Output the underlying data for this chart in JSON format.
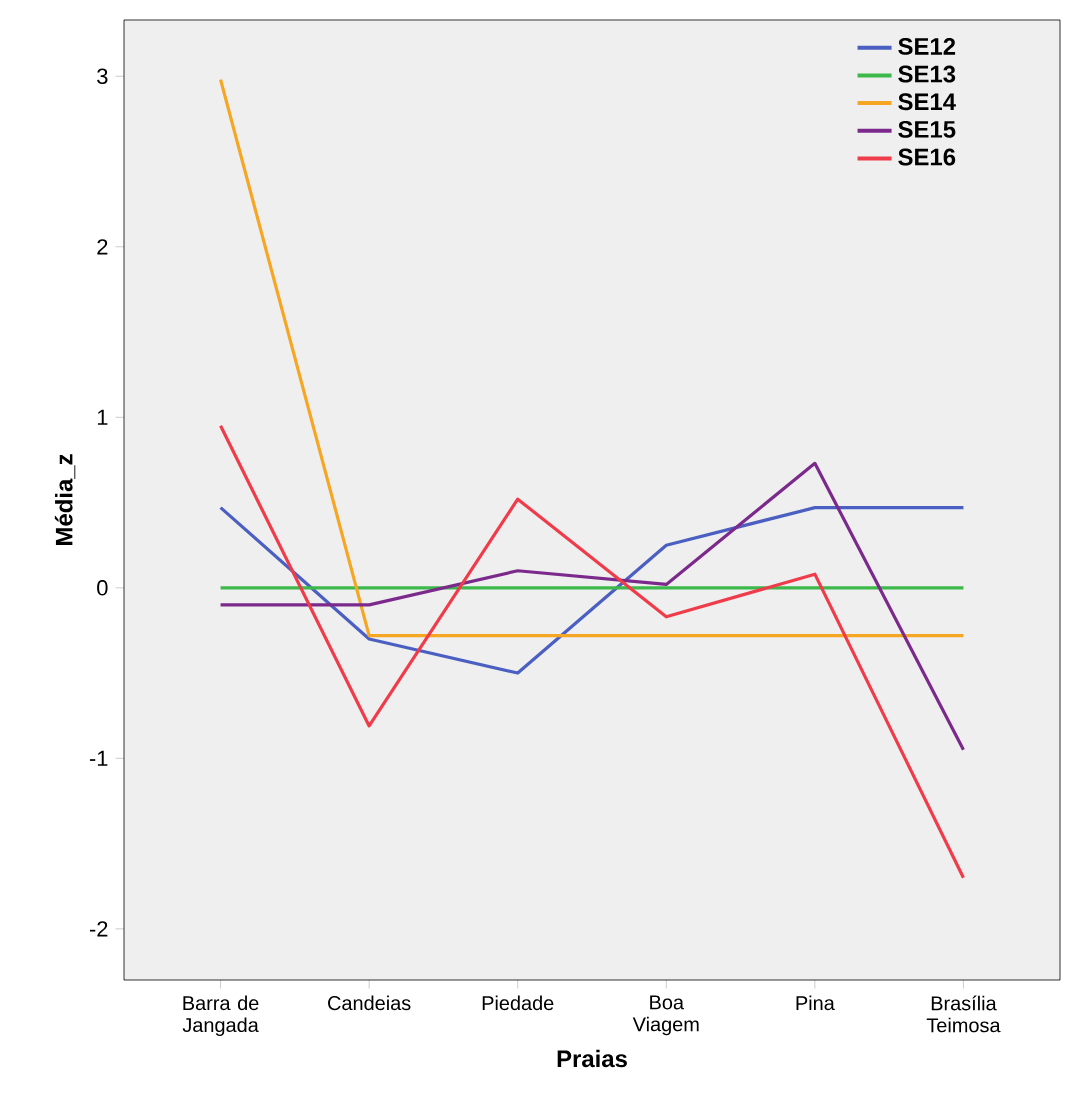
{
  "chart_data": {
    "type": "line",
    "xlabel": "Praias",
    "ylabel": "Média_z",
    "categories": [
      "Barra de Jangada",
      "Candeias",
      "Piedade",
      "Boa Viagem",
      "Pina",
      "Brasília Teimosa"
    ],
    "series": [
      {
        "name": "SE12",
        "color": "#4a5fc1",
        "values": [
          0.47,
          -0.3,
          -0.5,
          0.25,
          0.47,
          0.47
        ]
      },
      {
        "name": "SE13",
        "color": "#3cb94a",
        "values": [
          0,
          0,
          0,
          0,
          0,
          0
        ]
      },
      {
        "name": "SE14",
        "color": "#f5a623",
        "values": [
          2.98,
          -0.28,
          -0.28,
          -0.28,
          -0.28,
          -0.28
        ]
      },
      {
        "name": "SE15",
        "color": "#7b2a8c",
        "values": [
          -0.1,
          -0.1,
          0.1,
          0.02,
          0.73,
          -0.95
        ]
      },
      {
        "name": "SE16",
        "color": "#f03c4a",
        "values": [
          0.95,
          -0.81,
          0.52,
          -0.17,
          0.08,
          -1.7
        ]
      }
    ],
    "ylim": [
      -2.3,
      3.33
    ],
    "yticks": [
      -2,
      -1,
      0,
      1,
      2,
      3
    ],
    "grid": false,
    "legend": "top right",
    "marker": "none",
    "line_style": "solid"
  }
}
